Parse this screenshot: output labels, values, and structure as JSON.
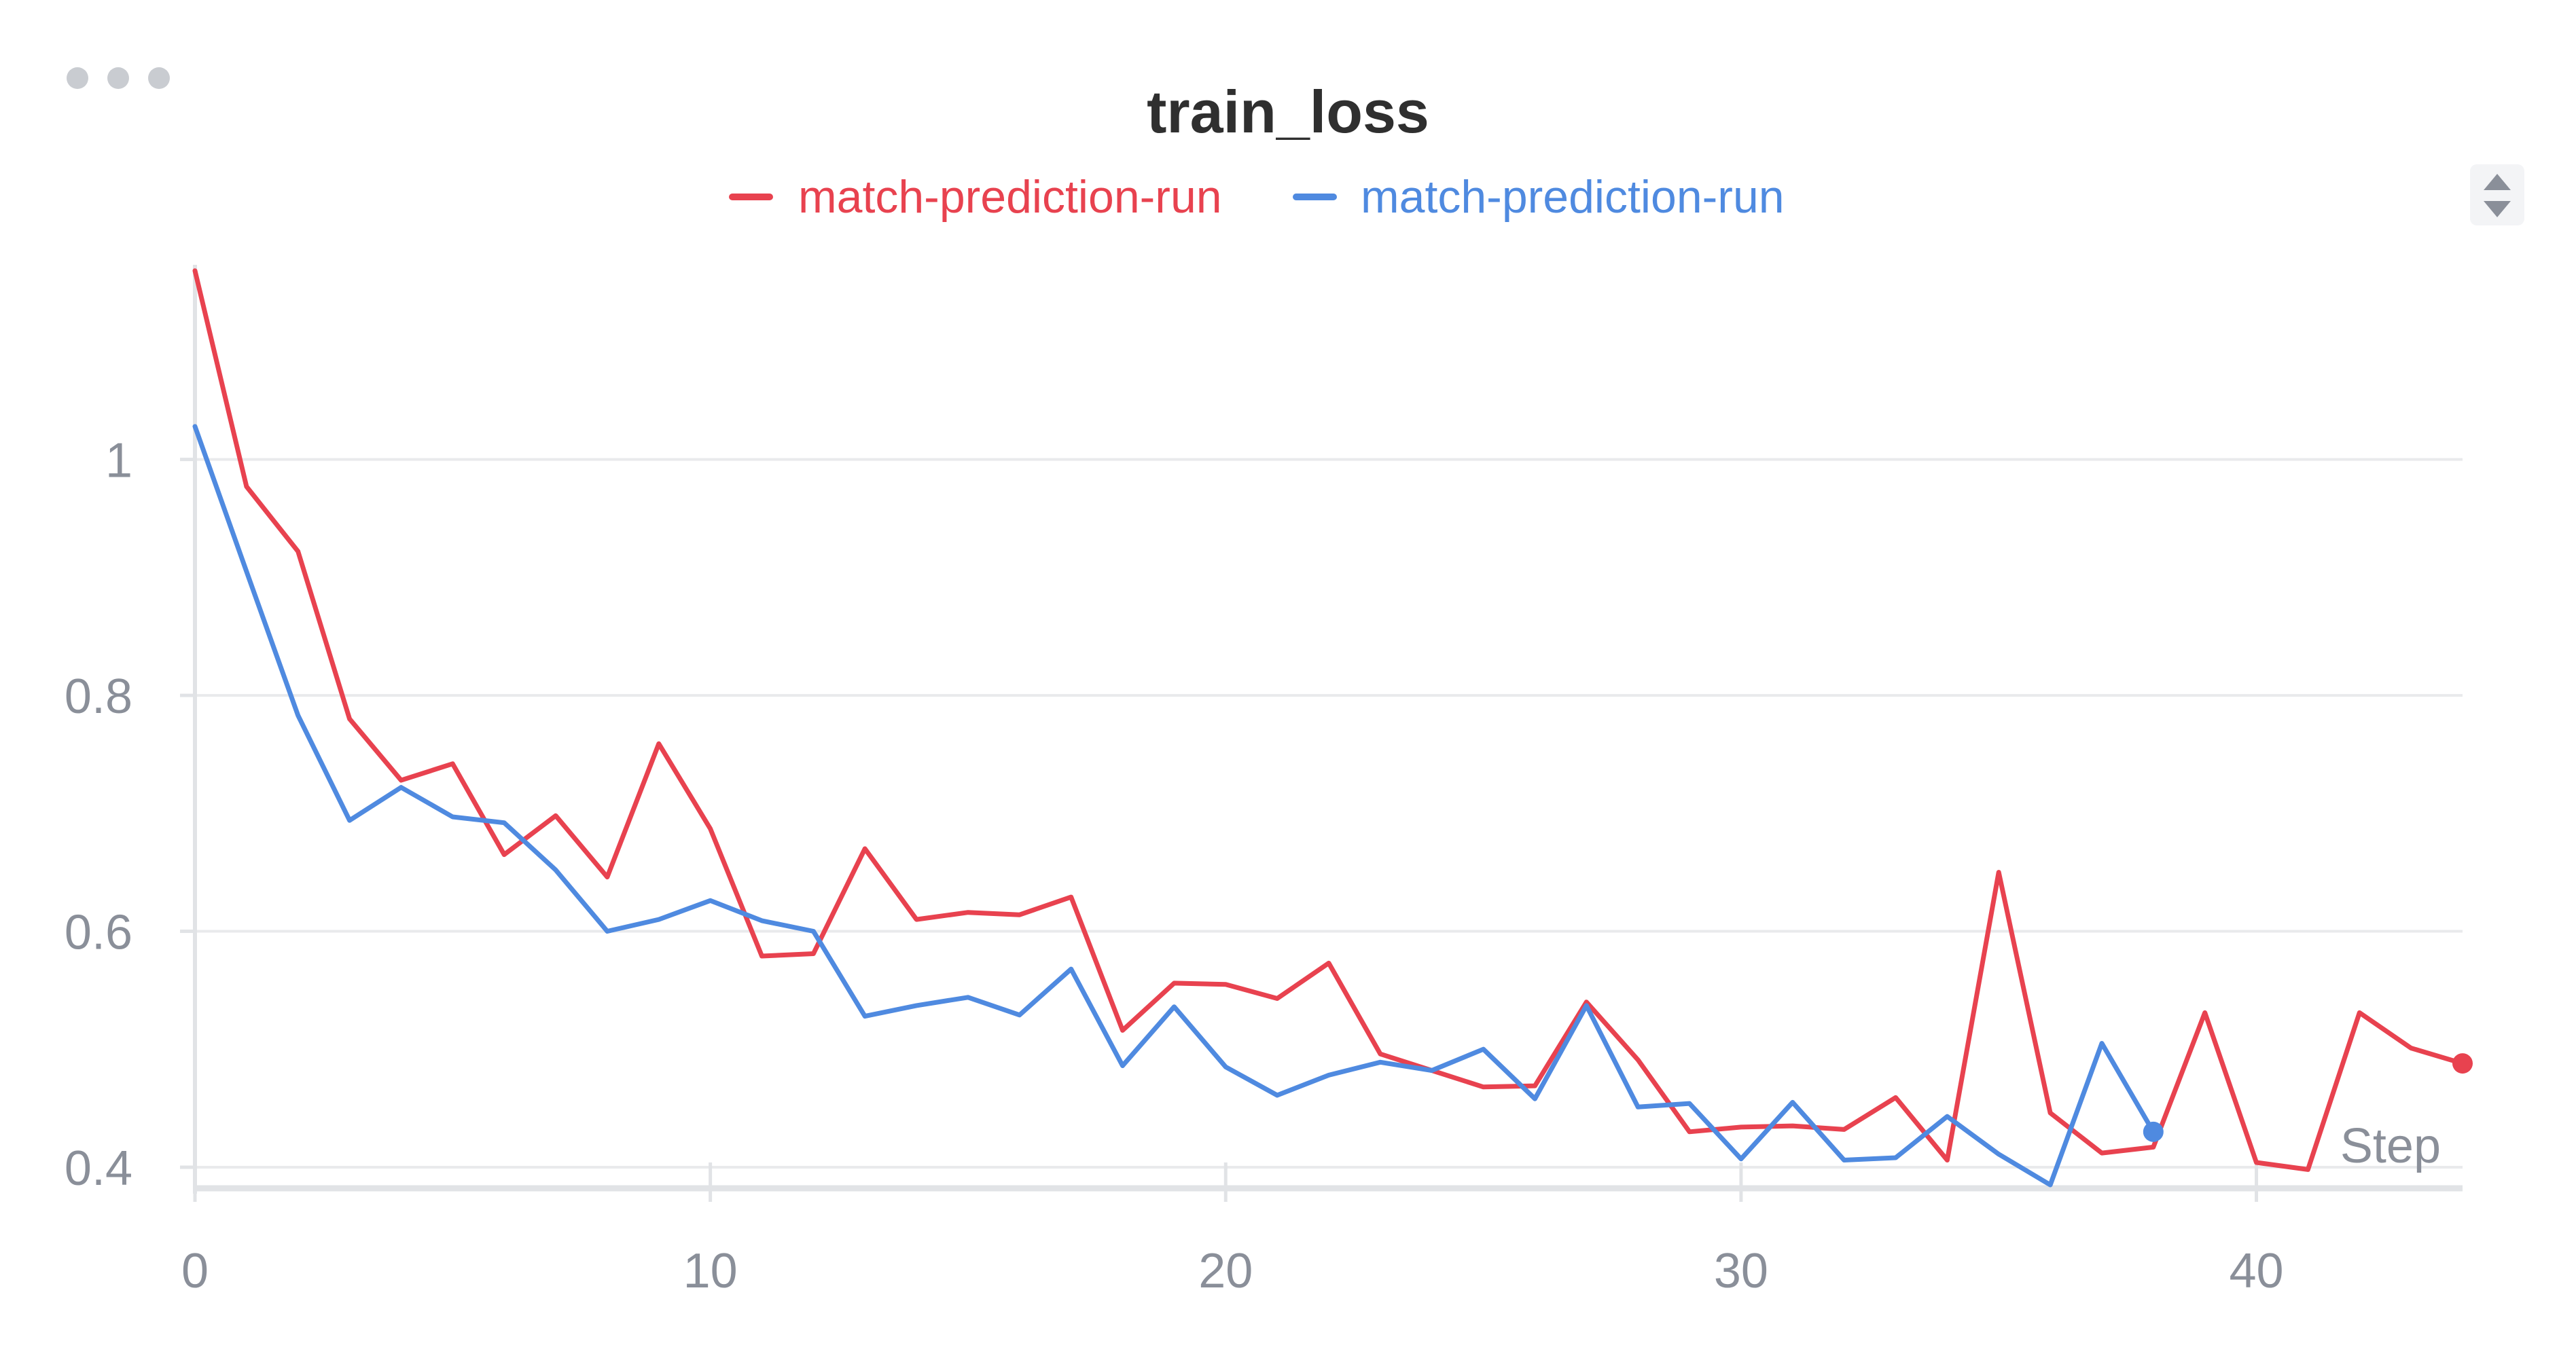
{
  "panel": {
    "menu_icon": "more-horizontal-icon",
    "sort_icon": "sort-up-down-icon"
  },
  "chart_data": {
    "type": "line",
    "title": "train_loss",
    "xlabel": "Step",
    "ylabel": "",
    "xlim": [
      0,
      44
    ],
    "ylim": [
      0.385,
      1.165
    ],
    "xticks": [
      0,
      10,
      20,
      30,
      40
    ],
    "yticks": [
      0.4,
      0.6,
      0.8,
      1
    ],
    "ytick_labels": [
      "0.4",
      "0.6",
      "0.8",
      "1"
    ],
    "xtick_labels": [
      "0",
      "10",
      "20",
      "30",
      "40"
    ],
    "grid": true,
    "legend_position": "top-center",
    "series": [
      {
        "name": "match-prediction-run",
        "color": "#e8424f",
        "x": [
          0,
          1,
          2,
          3,
          4,
          5,
          6,
          7,
          8,
          9,
          10,
          11,
          12,
          13,
          14,
          15,
          16,
          17,
          18,
          19,
          20,
          21,
          22,
          23,
          24,
          25,
          26,
          27,
          28,
          29,
          30,
          31,
          32,
          33,
          34,
          35,
          36,
          37,
          38,
          39,
          40,
          41,
          42,
          43,
          44
        ],
        "y": [
          1.16,
          0.977,
          0.922,
          0.78,
          0.728,
          0.742,
          0.665,
          0.698,
          0.646,
          0.759,
          0.687,
          0.579,
          0.581,
          0.67,
          0.61,
          0.616,
          0.614,
          0.629,
          0.516,
          0.556,
          0.555,
          0.543,
          0.573,
          0.496,
          0.482,
          0.468,
          0.469,
          0.54,
          0.491,
          0.43,
          0.434,
          0.435,
          0.432,
          0.459,
          0.406,
          0.65,
          0.446,
          0.412,
          0.417,
          0.531,
          0.404,
          0.398,
          0.531,
          0.501,
          0.488
        ]
      },
      {
        "name": "match-prediction-run",
        "color": "#4f8ae0",
        "x": [
          0,
          1,
          2,
          3,
          4,
          5,
          6,
          7,
          8,
          9,
          10,
          11,
          12,
          13,
          14,
          15,
          16,
          17,
          18,
          19,
          20,
          21,
          22,
          23,
          24,
          25,
          26,
          27,
          28,
          29,
          30,
          31,
          32,
          33,
          34,
          35,
          36,
          37,
          38
        ],
        "y": [
          1.028,
          0.905,
          0.783,
          0.694,
          0.722,
          0.697,
          0.692,
          0.652,
          0.6,
          0.61,
          0.626,
          0.609,
          0.6,
          0.528,
          0.537,
          0.544,
          0.529,
          0.568,
          0.486,
          0.536,
          0.485,
          0.461,
          0.478,
          0.489,
          0.482,
          0.5,
          0.458,
          0.537,
          0.451,
          0.454,
          0.407,
          0.455,
          0.406,
          0.408,
          0.443,
          0.411,
          0.385,
          0.505,
          0.43
        ]
      }
    ]
  }
}
